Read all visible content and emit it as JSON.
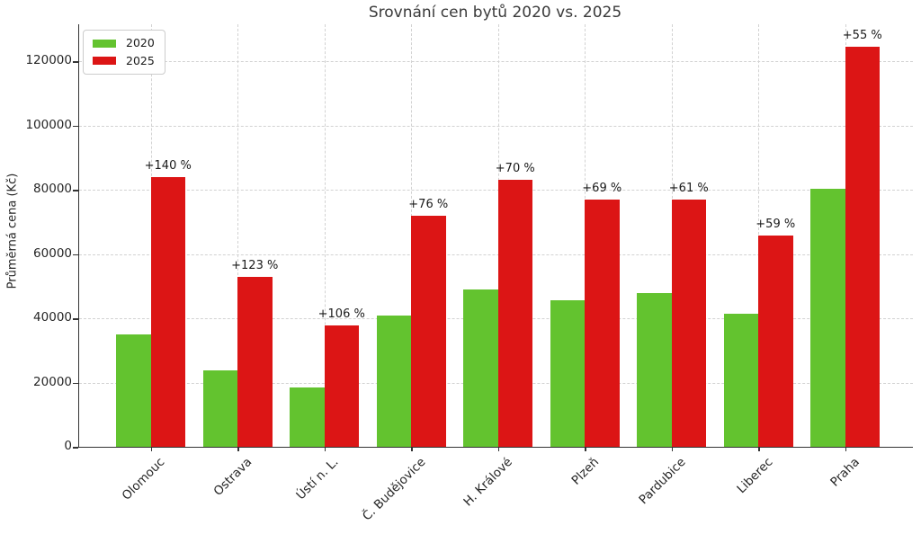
{
  "title": "Srovnání cen bytů 2020 vs. 2025",
  "chart_data": {
    "type": "bar",
    "title": "Srovnání cen bytů 2020 vs. 2025",
    "xlabel": "",
    "ylabel": "Průměrná cena (Kč)",
    "categories": [
      "Olomouc",
      "Ostrava",
      "Ústí n. L.",
      "Č. Budějovice",
      "H. Králové",
      "Plzeň",
      "Pardubice",
      "Liberec",
      "Praha"
    ],
    "series": [
      {
        "name": "2020",
        "color": "#63c32f",
        "values": [
          35000,
          23700,
          18400,
          40800,
          48900,
          45600,
          47800,
          41400,
          80300
        ]
      },
      {
        "name": "2025",
        "color": "#dc1515",
        "values": [
          84000,
          52900,
          37900,
          71800,
          83100,
          77000,
          77000,
          65800,
          124500
        ]
      }
    ],
    "annotations": [
      "+140 %",
      "+123 %",
      "+106 %",
      "+76 %",
      "+70 %",
      "+69 %",
      "+61 %",
      "+59 %",
      "+55 %"
    ],
    "yticks": [
      0,
      20000,
      40000,
      60000,
      80000,
      100000,
      120000
    ],
    "ylim": [
      0,
      131500
    ],
    "grid": "dashed horizontal and vertical gridlines",
    "legend_position": "upper left",
    "x_tick_rotation": 45
  },
  "colors": {
    "bar_2020": "#63c32f",
    "bar_2025": "#dc1515",
    "gridline": "#d2d2d2",
    "axis_spine": "#333333",
    "title_text": "#3a3a3a",
    "tick_text": "#262626"
  }
}
